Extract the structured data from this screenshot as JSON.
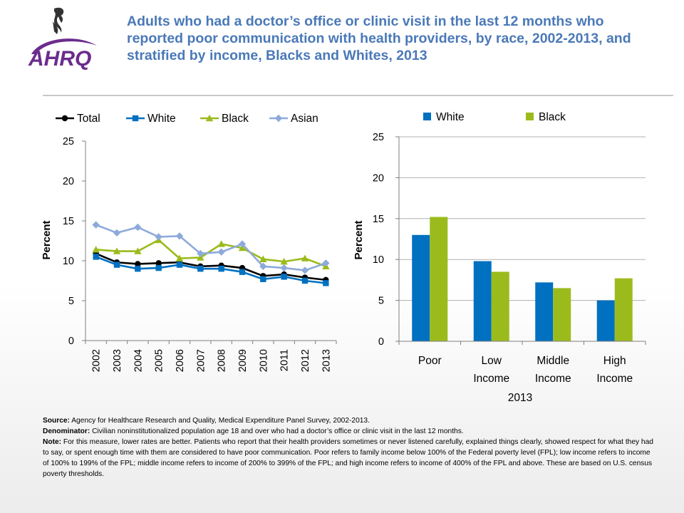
{
  "header": {
    "title": "Adults who had a doctor’s office or clinic visit in the last 12 months who reported poor communication with health providers, by race, 2002-2013, and stratified by income, Blacks and Whites, 2013",
    "logo_text": "AHRQ",
    "colors": {
      "title": "#4a79b8",
      "logo_purple": "#6b2c8c"
    }
  },
  "chart_data": [
    {
      "type": "line",
      "ylabel": "Percent",
      "ylim": [
        0,
        25
      ],
      "yticks": [
        0,
        5,
        10,
        15,
        20,
        25
      ],
      "x": [
        "2002",
        "2003",
        "2004",
        "2005",
        "2006",
        "2007",
        "2008",
        "2009",
        "2010",
        "2011",
        "2012",
        "2013"
      ],
      "legend_position": "top",
      "grid": false,
      "series": [
        {
          "name": "Total",
          "color": "#000000",
          "marker": "circle",
          "values": [
            10.9,
            9.8,
            9.6,
            9.7,
            9.8,
            9.3,
            9.4,
            9.1,
            8.1,
            8.3,
            7.9,
            7.6
          ]
        },
        {
          "name": "White",
          "color": "#0070c0",
          "marker": "square",
          "values": [
            10.5,
            9.5,
            9.0,
            9.1,
            9.5,
            9.0,
            9.0,
            8.6,
            7.7,
            8.0,
            7.5,
            7.2
          ]
        },
        {
          "name": "Black",
          "color": "#9bbb1c",
          "marker": "triangle",
          "values": [
            11.4,
            11.2,
            11.2,
            12.6,
            10.3,
            10.4,
            12.1,
            11.6,
            10.2,
            9.9,
            10.3,
            9.3
          ]
        },
        {
          "name": "Asian",
          "color": "#8eaadb",
          "marker": "diamond",
          "values": [
            14.5,
            13.5,
            14.2,
            13.0,
            13.1,
            10.9,
            11.1,
            12.1,
            9.3,
            9.1,
            8.8,
            9.7
          ]
        }
      ]
    },
    {
      "type": "bar",
      "ylabel": "Percent",
      "xlabel": "2013",
      "ylim": [
        0,
        25
      ],
      "yticks": [
        0,
        5,
        10,
        15,
        20,
        25
      ],
      "categories": [
        [
          "Poor"
        ],
        [
          "Low",
          "Income"
        ],
        [
          "Middle",
          "Income"
        ],
        [
          "High",
          "Income"
        ]
      ],
      "legend_position": "top",
      "grid": true,
      "series": [
        {
          "name": "White",
          "color": "#0070c0",
          "values": [
            13.0,
            9.8,
            7.2,
            5.0
          ]
        },
        {
          "name": "Black",
          "color": "#9bbb1c",
          "values": [
            15.2,
            8.5,
            6.5,
            7.7
          ]
        }
      ]
    }
  ],
  "notes": {
    "source_label": "Source:",
    "source_text": "Agency for Healthcare Research and Quality, Medical Expenditure Panel Survey, 2002-2013.",
    "denominator_label": "Denominator:",
    "denominator_text": "Civilian noninstitutionalized population age 18 and over who had a doctor’s office or clinic visit in the last 12 months.",
    "note_label": "Note:",
    "note_text": "For this measure, lower rates are better. Patients who report that their health providers sometimes or never listened carefully, explained things clearly, showed respect for what they had to say, or spent enough time with them are considered to have poor communication. Poor refers to family income below 100% of the Federal poverty level (FPL); low income refers to income of 100% to 199% of the FPL; middle income refers to income of 200% to 399% of the FPL; and high income refers to income of 400% of the FPL and above. These are based on U.S. census poverty thresholds."
  }
}
